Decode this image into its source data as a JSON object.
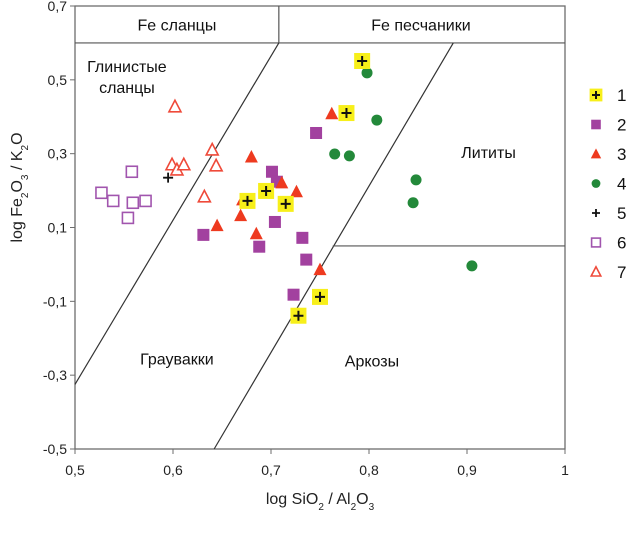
{
  "chart_data": {
    "type": "scatter",
    "title": "",
    "xlabel": "log SiO2 / Al2O3",
    "xlabel_parts": [
      {
        "t": "log SiO"
      },
      {
        "t": "2",
        "sub": true
      },
      {
        "t": " / Al"
      },
      {
        "t": "2",
        "sub": true
      },
      {
        "t": "O"
      },
      {
        "t": "3",
        "sub": true
      }
    ],
    "ylabel": "log Fe2O3 / K2O",
    "ylabel_parts": [
      {
        "t": "log Fe"
      },
      {
        "t": "2",
        "sub": true
      },
      {
        "t": "O"
      },
      {
        "t": "3",
        "sub": true
      },
      {
        "t": " / K"
      },
      {
        "t": "2",
        "sub": true
      },
      {
        "t": "O"
      }
    ],
    "xlim": [
      0.5,
      1.0
    ],
    "ylim": [
      -0.5,
      0.7
    ],
    "grid": false,
    "x_ticks": [
      0.5,
      0.6,
      0.7,
      0.8,
      0.9,
      1.0
    ],
    "x_tick_labels": [
      "0,5",
      "0,6",
      "0,7",
      "0,8",
      "0,9",
      "1"
    ],
    "y_ticks": [
      -0.5,
      -0.3,
      -0.1,
      0.1,
      0.3,
      0.5,
      0.7
    ],
    "y_tick_labels": [
      "-0,5",
      "-0,3",
      "-0,1",
      "0,1",
      "0,3",
      "0,5",
      "0,7"
    ],
    "legend_position": "right",
    "boundaries": [
      {
        "name": "fe-band-bottom",
        "points": [
          [
            0.5,
            0.6
          ],
          [
            1.0,
            0.6
          ]
        ]
      },
      {
        "name": "fe-band-divider",
        "points": [
          [
            0.708,
            0.6
          ],
          [
            0.708,
            0.7
          ]
        ]
      },
      {
        "name": "shale-greywacke-boundary",
        "points": [
          [
            0.5,
            -0.325
          ],
          [
            0.708,
            0.6
          ]
        ]
      },
      {
        "name": "greywacke-arkose-boundary",
        "points": [
          [
            0.642,
            -0.5
          ],
          [
            0.886,
            0.6
          ]
        ]
      },
      {
        "name": "lithite-arkose-boundary",
        "points": [
          [
            0.763,
            0.05
          ],
          [
            1.0,
            0.05
          ]
        ]
      }
    ],
    "region_labels": [
      {
        "name": "fe-shales",
        "text": "Fe  сланцы",
        "x": 0.604,
        "y": 0.65
      },
      {
        "name": "fe-sandstones",
        "text": "Fe  песчаники",
        "x": 0.853,
        "y": 0.65
      },
      {
        "name": "clay-shales-line1",
        "text": "Глинистые",
        "x": 0.553,
        "y": 0.537
      },
      {
        "name": "clay-shales-line2",
        "text": "сланцы",
        "x": 0.553,
        "y": 0.48
      },
      {
        "name": "lithites",
        "text": "Лититы",
        "x": 0.922,
        "y": 0.305
      },
      {
        "name": "greywackes",
        "text": "Граувакки",
        "x": 0.604,
        "y": -0.255
      },
      {
        "name": "arkoses",
        "text": "Аркозы",
        "x": 0.803,
        "y": -0.26
      }
    ],
    "series": [
      {
        "name": "1",
        "marker": "yellow-plus",
        "color": "#f7ef1a",
        "points": [
          [
            0.793,
            0.551
          ],
          [
            0.777,
            0.41
          ],
          [
            0.676,
            0.172
          ],
          [
            0.695,
            0.199
          ],
          [
            0.715,
            0.164
          ],
          [
            0.75,
            -0.088
          ],
          [
            0.728,
            -0.139
          ]
        ]
      },
      {
        "name": "2",
        "marker": "filled-square",
        "color": "#a2419f",
        "points": [
          [
            0.746,
            0.356
          ],
          [
            0.701,
            0.251
          ],
          [
            0.706,
            0.224
          ],
          [
            0.704,
            0.115
          ],
          [
            0.631,
            0.08
          ],
          [
            0.688,
            0.048
          ],
          [
            0.732,
            0.072
          ],
          [
            0.736,
            0.013
          ],
          [
            0.723,
            -0.082
          ]
        ]
      },
      {
        "name": "3",
        "marker": "filled-triangle",
        "color": "#ee3a1f",
        "points": [
          [
            0.762,
            0.408
          ],
          [
            0.68,
            0.291
          ],
          [
            0.711,
            0.221
          ],
          [
            0.726,
            0.197
          ],
          [
            0.671,
            0.175
          ],
          [
            0.669,
            0.132
          ],
          [
            0.645,
            0.105
          ],
          [
            0.685,
            0.083
          ],
          [
            0.75,
            -0.014
          ]
        ]
      },
      {
        "name": "4",
        "marker": "filled-circle",
        "color": "#23893a",
        "points": [
          [
            0.798,
            0.519
          ],
          [
            0.808,
            0.391
          ],
          [
            0.765,
            0.299
          ],
          [
            0.78,
            0.294
          ],
          [
            0.848,
            0.229
          ],
          [
            0.845,
            0.167
          ],
          [
            0.905,
            -0.004
          ]
        ]
      },
      {
        "name": "5",
        "marker": "black-plus",
        "color": "#111111",
        "points": [
          [
            0.595,
            0.235
          ]
        ]
      },
      {
        "name": "6",
        "marker": "open-square",
        "color": "#a155ae",
        "points": [
          [
            0.558,
            0.251
          ],
          [
            0.527,
            0.194
          ],
          [
            0.539,
            0.172
          ],
          [
            0.559,
            0.167
          ],
          [
            0.572,
            0.172
          ],
          [
            0.554,
            0.126
          ]
        ]
      },
      {
        "name": "7",
        "marker": "open-triangle",
        "color": "#ef4a3a",
        "points": [
          [
            0.602,
            0.427
          ],
          [
            0.599,
            0.27
          ],
          [
            0.604,
            0.256
          ],
          [
            0.611,
            0.27
          ],
          [
            0.64,
            0.31
          ],
          [
            0.644,
            0.267
          ],
          [
            0.632,
            0.183
          ]
        ]
      }
    ]
  }
}
